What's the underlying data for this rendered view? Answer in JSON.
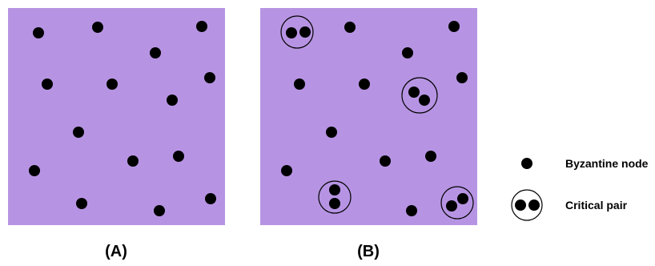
{
  "colors": {
    "panel_fill": "#b794e3",
    "node": "#000000",
    "ring": "#000000",
    "background": "#ffffff"
  },
  "panels": [
    {
      "label": "(A)",
      "critical_pairs": 0
    },
    {
      "label": "(B)",
      "critical_pairs": 4
    }
  ],
  "legend": {
    "byzantine_label": "Byzantine node",
    "critical_label": "Critical pair"
  }
}
